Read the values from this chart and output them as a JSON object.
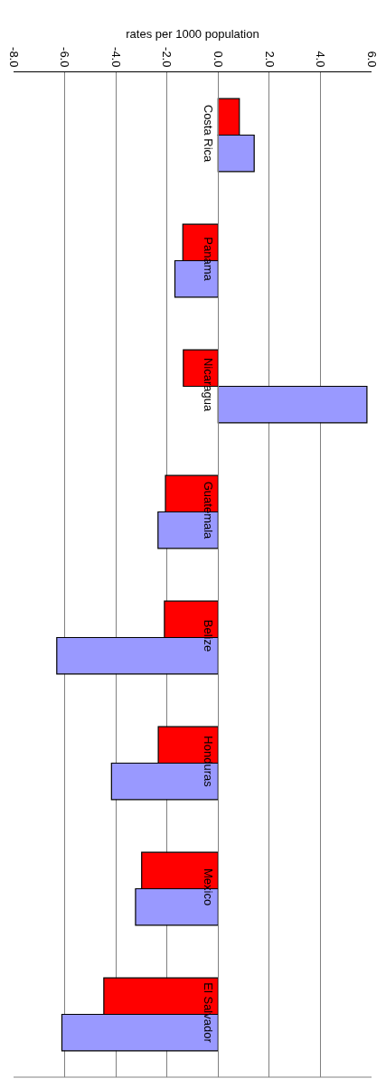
{
  "chart_data": {
    "type": "bar",
    "orientation": "horizontal",
    "xlabel": "rates per 1000 population",
    "categories": [
      "Costa Rica",
      "Panama",
      "Nicaragua",
      "Guatemala",
      "Belize",
      "Honduras",
      "Mexico",
      "El Salvador"
    ],
    "series": [
      {
        "color": "#ff0000",
        "values": [
          0.83,
          -1.38,
          -1.36,
          -2.06,
          -2.1,
          -2.34,
          -2.99,
          -4.47
        ]
      },
      {
        "color": "#9999ff",
        "values": [
          1.41,
          -1.69,
          5.82,
          -2.35,
          -6.31,
          -4.17,
          -3.23,
          -6.11
        ]
      }
    ],
    "xlim": [
      -8,
      6
    ],
    "xticks": [
      {
        "value": -8,
        "label": "-8.0"
      },
      {
        "value": -6,
        "label": "-6.0"
      },
      {
        "value": -4,
        "label": "-4.0"
      },
      {
        "value": -2,
        "label": "-2.0"
      },
      {
        "value": 0,
        "label": "0.0"
      },
      {
        "value": 2,
        "label": "2.0"
      },
      {
        "value": 4,
        "label": "4.0"
      },
      {
        "value": 6,
        "label": "6.0"
      }
    ],
    "grid": "x",
    "legend": false
  }
}
